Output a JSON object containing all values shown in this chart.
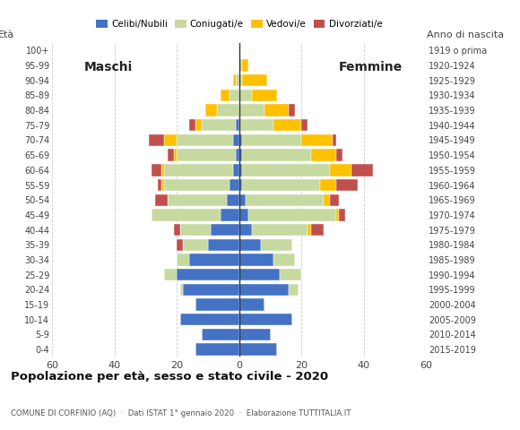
{
  "age_groups": [
    "0-4",
    "5-9",
    "10-14",
    "15-19",
    "20-24",
    "25-29",
    "30-34",
    "35-39",
    "40-44",
    "45-49",
    "50-54",
    "55-59",
    "60-64",
    "65-69",
    "70-74",
    "75-79",
    "80-84",
    "85-89",
    "90-94",
    "95-99",
    "100+"
  ],
  "birth_years": [
    "2015-2019",
    "2010-2014",
    "2005-2009",
    "2000-2004",
    "1995-1999",
    "1990-1994",
    "1985-1989",
    "1980-1984",
    "1975-1979",
    "1970-1974",
    "1965-1969",
    "1960-1964",
    "1955-1959",
    "1950-1954",
    "1945-1949",
    "1940-1944",
    "1935-1939",
    "1930-1934",
    "1925-1929",
    "1920-1924",
    "1919 o prima"
  ],
  "male_celibe": [
    14,
    12,
    19,
    14,
    18,
    20,
    16,
    10,
    9,
    6,
    4,
    3,
    2,
    1,
    2,
    1,
    0,
    0,
    0,
    0,
    0
  ],
  "male_coniugato": [
    0,
    0,
    0,
    0,
    1,
    4,
    4,
    8,
    10,
    22,
    19,
    21,
    22,
    19,
    18,
    11,
    7,
    3,
    1,
    0,
    0
  ],
  "male_vedovo": [
    0,
    0,
    0,
    0,
    0,
    0,
    0,
    0,
    0,
    0,
    0,
    1,
    1,
    1,
    4,
    2,
    4,
    3,
    1,
    0,
    0
  ],
  "male_divorziato": [
    0,
    0,
    0,
    0,
    0,
    0,
    0,
    2,
    2,
    0,
    4,
    1,
    3,
    2,
    5,
    2,
    0,
    0,
    0,
    0,
    0
  ],
  "female_celibe": [
    12,
    10,
    17,
    8,
    16,
    13,
    11,
    7,
    4,
    3,
    2,
    1,
    1,
    1,
    1,
    0,
    0,
    0,
    0,
    0,
    0
  ],
  "female_coniugato": [
    0,
    0,
    0,
    0,
    3,
    7,
    7,
    10,
    18,
    28,
    25,
    25,
    28,
    22,
    19,
    11,
    8,
    4,
    1,
    1,
    0
  ],
  "female_vedovo": [
    0,
    0,
    0,
    0,
    0,
    0,
    0,
    0,
    1,
    1,
    2,
    5,
    7,
    8,
    10,
    9,
    8,
    8,
    8,
    2,
    0
  ],
  "female_divorziato": [
    0,
    0,
    0,
    0,
    0,
    0,
    0,
    0,
    4,
    2,
    3,
    7,
    7,
    2,
    1,
    2,
    2,
    0,
    0,
    0,
    0
  ],
  "color_celibe": "#4472C4",
  "color_coniugato": "#C6D9A0",
  "color_vedovo": "#FFC000",
  "color_divorziato": "#C0504D",
  "title": "Popolazione per età, sesso e stato civile - 2020",
  "subtitle": "COMUNE DI CORFINIO (AQ)  ·  Dati ISTAT 1° gennaio 2020  ·  Elaborazione TUTTITALIA.IT",
  "label_maschi": "Maschi",
  "label_femmine": "Femmine",
  "ylabel_left": "Età",
  "ylabel_right": "Anno di nascita",
  "xlim": 60,
  "background_color": "#ffffff",
  "grid_color": "#cccccc"
}
